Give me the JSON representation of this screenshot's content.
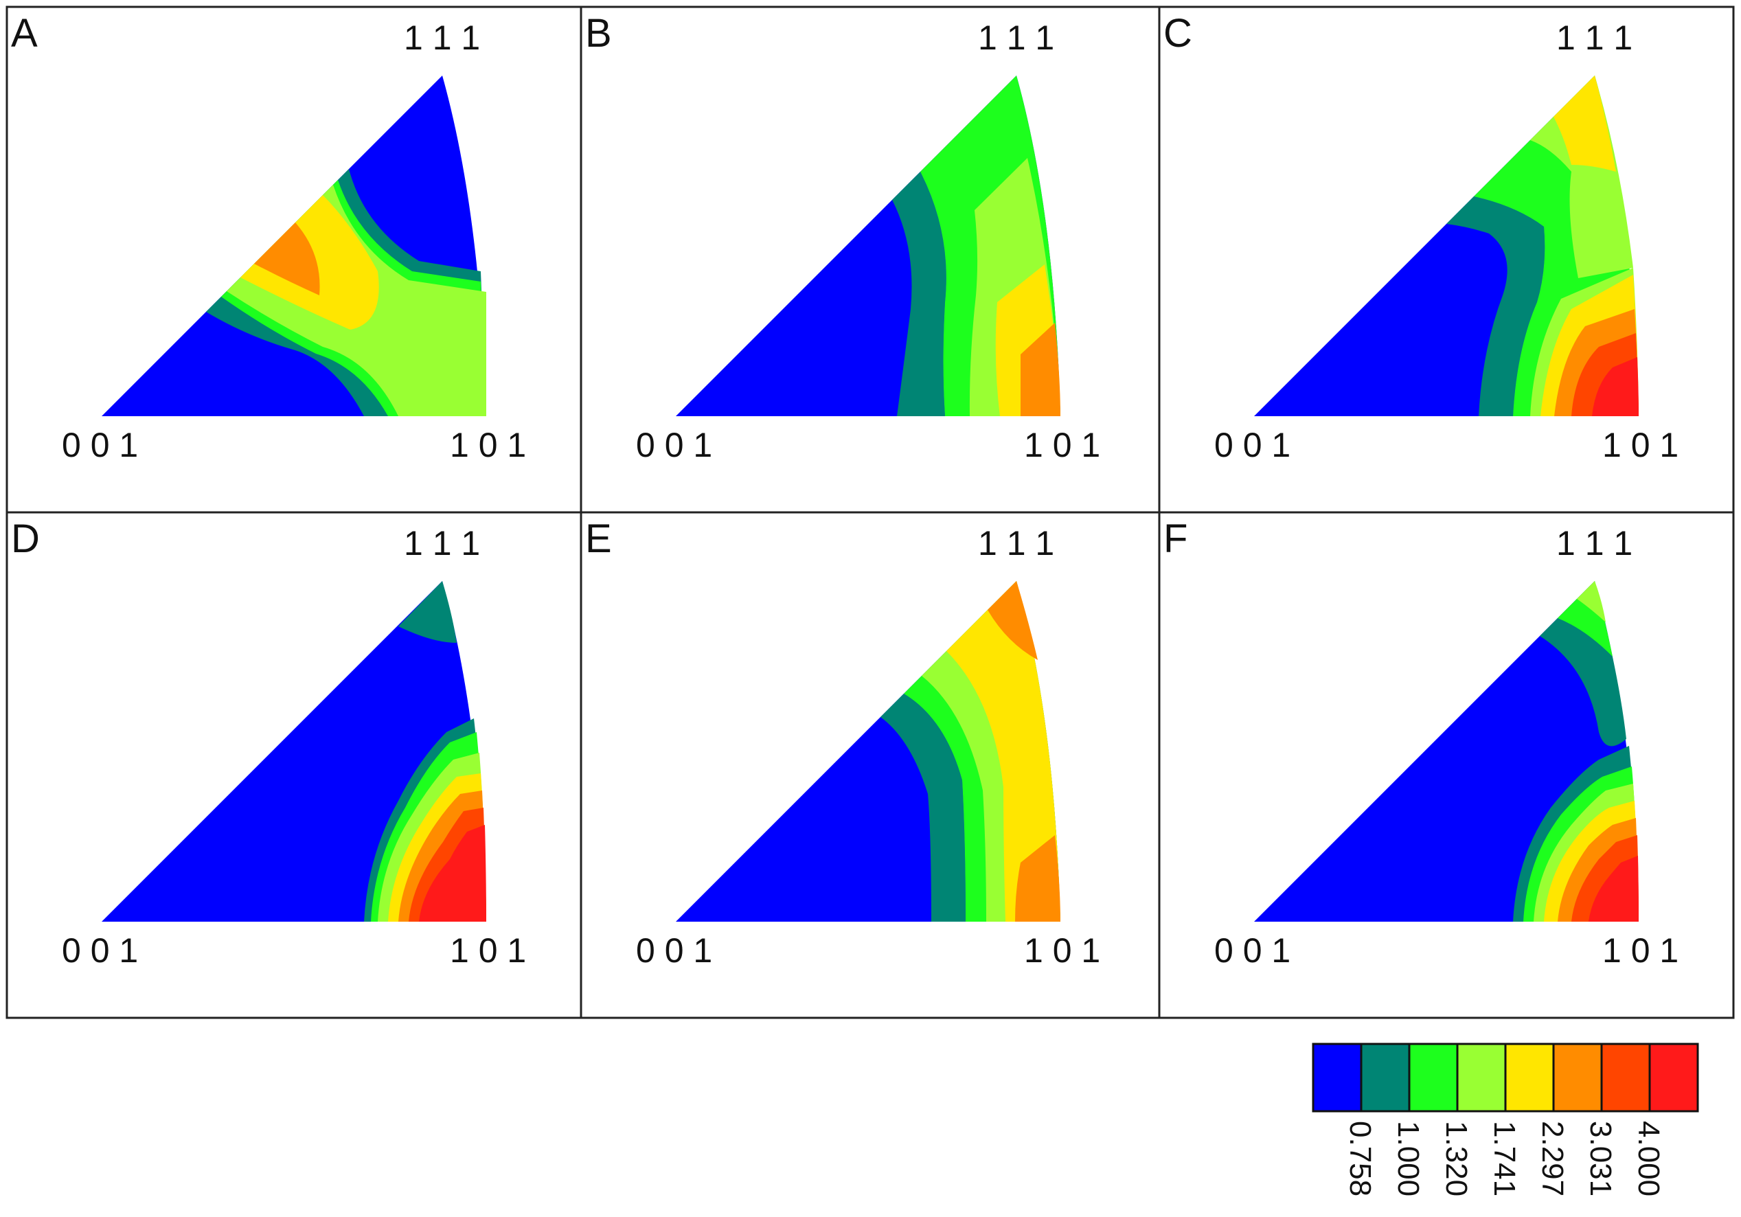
{
  "figure": {
    "corner_labels": {
      "top": "1 1 1",
      "bottom_left": "0 0 1",
      "bottom_right": "1 0 1"
    },
    "legend": {
      "colors": [
        "#0000ff",
        "#008574",
        "#1dff1d",
        "#99ff33",
        "#ffe600",
        "#ff8c00",
        "#ff4500",
        "#ff1a1a"
      ],
      "tick_labels": [
        "0.758",
        "1.000",
        "1.320",
        "1.741",
        "2.297",
        "3.031",
        "4.000"
      ]
    }
  },
  "chart_data": {
    "type": "heatmap",
    "description_of_levels": "contour levels of inverse pole figure intensity",
    "levels": [
      0.758,
      1.0,
      1.32,
      1.741,
      2.297,
      3.031,
      4.0
    ],
    "panels": [
      {
        "label": "A",
        "peak_region": "between 001 and 111 edge",
        "max_level": 3.031
      },
      {
        "label": "B",
        "peak_region": "near 101",
        "max_level": 3.031
      },
      {
        "label": "C",
        "peak_region": "near 101",
        "max_level": 4.0
      },
      {
        "label": "D",
        "peak_region": "near 101",
        "max_level": 4.0
      },
      {
        "label": "E",
        "peak_region": "near 101 and 111",
        "max_level": 3.031
      },
      {
        "label": "F",
        "peak_region": "near 101",
        "max_level": 4.0
      }
    ]
  }
}
